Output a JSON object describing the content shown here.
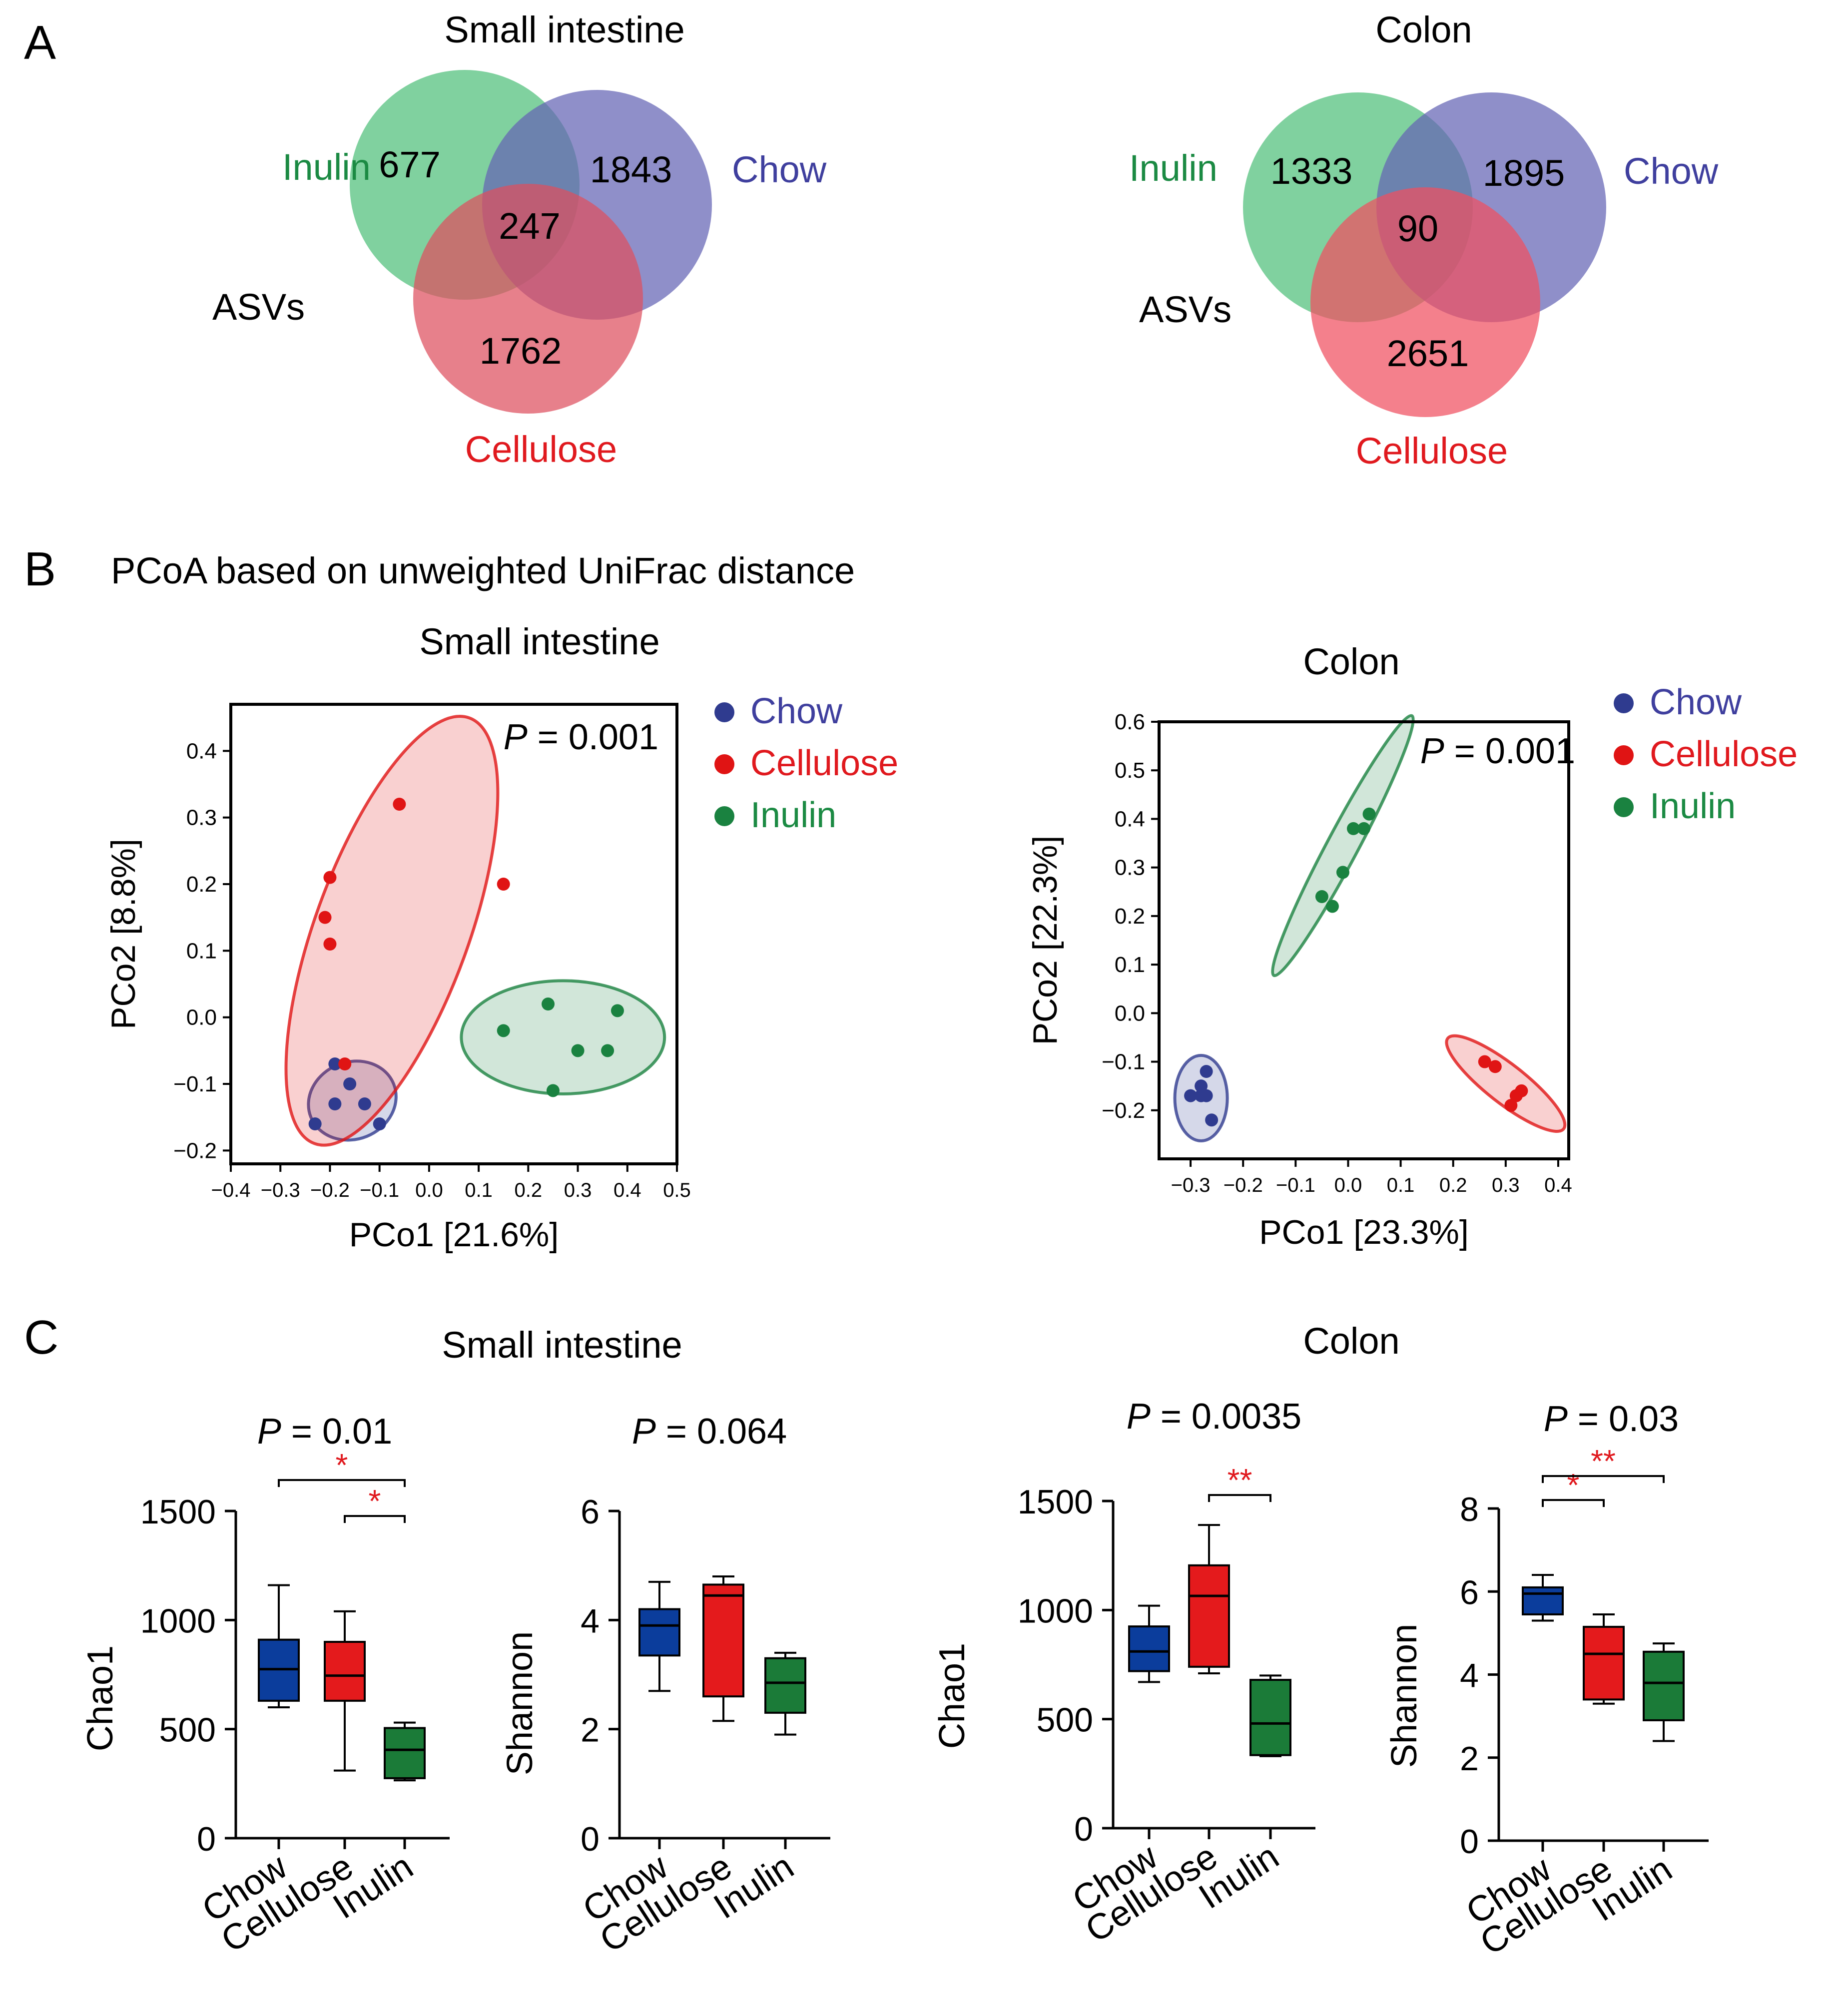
{
  "colors": {
    "chow": "#3f3f9e",
    "cellulose": "#e0191e",
    "inulin": "#1b8a43",
    "chow_dot": "#2f3b8f",
    "cellulose_dot": "#e01414",
    "inulin_dot": "#1a8240",
    "venn_inulin": "#4fbf7a",
    "venn_chow": "#6464b4",
    "venn_cellulose": "#de4f5e",
    "box_chow": "#0b3d9c",
    "box_cellulose": "#e41a1c",
    "box_inulin": "#1b7b38",
    "sig": "#e0191e"
  },
  "panels": {
    "A": "A",
    "B": "B",
    "C": "C"
  },
  "panel_b_title": "PCoA based on unweighted UniFrac distance",
  "venn": [
    {
      "title": "Small intestine",
      "set_labels": [
        "Inulin",
        "Chow",
        "Cellulose"
      ],
      "counts": {
        "inulin_only": "677",
        "chow_only": "1843",
        "shared": "247",
        "cellulose_only": "1762"
      },
      "side_label": "ASVs"
    },
    {
      "title": "Colon",
      "set_labels": [
        "Inulin",
        "Chow",
        "Cellulose"
      ],
      "counts": {
        "inulin_only": "1333",
        "chow_only": "1895",
        "shared": "90",
        "cellulose_only": "2651"
      },
      "side_label": "ASVs"
    }
  ],
  "chart_data": [
    {
      "type": "scatter",
      "title": "Small intestine",
      "xlabel": "PCo1 [21.6%]",
      "ylabel": "PCo2 [8.8%]",
      "annotation": {
        "p": "P",
        "rest": " = 0.001"
      },
      "xlim": [
        -0.4,
        0.5
      ],
      "ylim": [
        -0.22,
        0.47
      ],
      "xticks": [
        -0.4,
        -0.3,
        -0.2,
        -0.1,
        0.0,
        0.1,
        0.2,
        0.3,
        0.4,
        0.5
      ],
      "xtick_labels": [
        "−0.4",
        "−0.3",
        "−0.2",
        "−0.1",
        "0.0",
        "0.1",
        "0.2",
        "0.3",
        "0.4",
        "0.5"
      ],
      "yticks": [
        -0.2,
        -0.1,
        0.0,
        0.1,
        0.2,
        0.3,
        0.4
      ],
      "ytick_labels": [
        "−0.2",
        "−0.1",
        "0.0",
        "0.1",
        "0.2",
        "0.3",
        "0.4"
      ],
      "legend": [
        "Chow",
        "Cellulose",
        "Inulin"
      ],
      "series": [
        {
          "name": "Chow",
          "points": [
            [
              -0.19,
              -0.07
            ],
            [
              -0.16,
              -0.1
            ],
            [
              -0.19,
              -0.13
            ],
            [
              -0.13,
              -0.13
            ],
            [
              -0.1,
              -0.16
            ],
            [
              -0.23,
              -0.16
            ]
          ]
        },
        {
          "name": "Cellulose",
          "points": [
            [
              -0.06,
              0.32
            ],
            [
              0.15,
              0.2
            ],
            [
              -0.2,
              0.21
            ],
            [
              -0.21,
              0.15
            ],
            [
              -0.2,
              0.11
            ],
            [
              -0.17,
              -0.07
            ]
          ]
        },
        {
          "name": "Inulin",
          "points": [
            [
              0.15,
              -0.02
            ],
            [
              0.24,
              0.02
            ],
            [
              0.38,
              0.01
            ],
            [
              0.3,
              -0.05
            ],
            [
              0.36,
              -0.05
            ],
            [
              0.25,
              -0.11
            ]
          ]
        }
      ],
      "ellipses": [
        {
          "name": "Chow",
          "center": [
            -0.155,
            -0.125
          ],
          "rx": 0.09,
          "ry": 0.058,
          "angle": -22
        },
        {
          "name": "Cellulose",
          "center": [
            -0.075,
            0.13
          ],
          "rx": 0.155,
          "ry": 0.34,
          "angle": 20
        },
        {
          "name": "Inulin",
          "center": [
            0.27,
            -0.03
          ],
          "rx": 0.205,
          "ry": 0.085,
          "angle": 0
        }
      ]
    },
    {
      "type": "scatter",
      "title": "Colon",
      "xlabel": "PCo1 [23.3%]",
      "ylabel": "PCo2 [22.3%]",
      "annotation": {
        "p": "P",
        "rest": " = 0.001"
      },
      "xlim": [
        -0.36,
        0.42
      ],
      "ylim": [
        -0.3,
        0.6
      ],
      "xticks": [
        -0.3,
        -0.2,
        -0.1,
        0.0,
        0.1,
        0.2,
        0.3,
        0.4
      ],
      "xtick_labels": [
        "−0.3",
        "−0.2",
        "−0.1",
        "0.0",
        "0.1",
        "0.2",
        "0.3",
        "0.4"
      ],
      "yticks": [
        -0.2,
        -0.1,
        0.0,
        0.1,
        0.2,
        0.3,
        0.4,
        0.5,
        0.6
      ],
      "ytick_labels": [
        "−0.2",
        "−0.1",
        "0.0",
        "0.1",
        "0.2",
        "0.3",
        "0.4",
        "0.5",
        "0.6"
      ],
      "legend": [
        "Chow",
        "Cellulose",
        "Inulin"
      ],
      "series": [
        {
          "name": "Chow",
          "points": [
            [
              -0.27,
              -0.12
            ],
            [
              -0.28,
              -0.15
            ],
            [
              -0.3,
              -0.17
            ],
            [
              -0.28,
              -0.17
            ],
            [
              -0.27,
              -0.17
            ],
            [
              -0.26,
              -0.22
            ]
          ]
        },
        {
          "name": "Cellulose",
          "points": [
            [
              0.26,
              -0.1
            ],
            [
              0.28,
              -0.11
            ],
            [
              0.33,
              -0.16
            ],
            [
              0.32,
              -0.17
            ],
            [
              0.31,
              -0.19
            ]
          ]
        },
        {
          "name": "Inulin",
          "points": [
            [
              0.04,
              0.41
            ],
            [
              0.03,
              0.38
            ],
            [
              0.01,
              0.38
            ],
            [
              -0.01,
              0.29
            ],
            [
              -0.05,
              0.24
            ],
            [
              -0.03,
              0.22
            ]
          ]
        }
      ],
      "ellipses": [
        {
          "name": "Chow",
          "center": [
            -0.28,
            -0.175
          ],
          "rx": 0.05,
          "ry": 0.088,
          "angle": 0
        },
        {
          "name": "Cellulose",
          "center": [
            0.3,
            -0.145
          ],
          "rx": 0.14,
          "ry": 0.04,
          "angle": 38
        },
        {
          "name": "Inulin",
          "center": [
            -0.01,
            0.345
          ],
          "rx": 0.28,
          "ry": 0.032,
          "angle": -62
        }
      ]
    },
    {
      "type": "box",
      "group": "Small intestine",
      "ylabel": "Chao1",
      "annotation": {
        "p": "P",
        "rest": " = 0.01"
      },
      "ylim": [
        0,
        1500
      ],
      "yticks": [
        0,
        500,
        1000,
        1500
      ],
      "ytick_labels": [
        "0",
        "500",
        "1000",
        "1500"
      ],
      "categories": [
        "Chow",
        "Cellulose",
        "Inulin"
      ],
      "boxes": [
        {
          "min": 600,
          "q1": 630,
          "median": 775,
          "q3": 910,
          "max": 1160
        },
        {
          "min": 310,
          "q1": 630,
          "median": 745,
          "q3": 900,
          "max": 1040
        },
        {
          "min": 265,
          "q1": 275,
          "median": 405,
          "q3": 505,
          "max": 530
        }
      ],
      "significance": [
        {
          "from": 0,
          "to": 2,
          "label": "*"
        },
        {
          "from": 1,
          "to": 2,
          "label": "*"
        }
      ]
    },
    {
      "type": "box",
      "group": "Small intestine",
      "ylabel": "Shannon",
      "annotation": {
        "p": "P",
        "rest": " = 0.064"
      },
      "ylim": [
        0,
        6
      ],
      "yticks": [
        0,
        2,
        4,
        6
      ],
      "ytick_labels": [
        "0",
        "2",
        "4",
        "6"
      ],
      "categories": [
        "Chow",
        "Cellulose",
        "Inulin"
      ],
      "boxes": [
        {
          "min": 2.7,
          "q1": 3.35,
          "median": 3.9,
          "q3": 4.2,
          "max": 4.7
        },
        {
          "min": 2.15,
          "q1": 2.6,
          "median": 4.45,
          "q3": 4.65,
          "max": 4.8
        },
        {
          "min": 1.9,
          "q1": 2.3,
          "median": 2.85,
          "q3": 3.3,
          "max": 3.4
        }
      ],
      "significance": []
    },
    {
      "type": "box",
      "group": "Colon",
      "ylabel": "Chao1",
      "annotation": {
        "p": "P",
        "rest": " = 0.0035"
      },
      "ylim": [
        0,
        1500
      ],
      "yticks": [
        0,
        500,
        1000,
        1500
      ],
      "ytick_labels": [
        "0",
        "500",
        "1000",
        "1500"
      ],
      "categories": [
        "Chow",
        "Cellulose",
        "Inulin"
      ],
      "boxes": [
        {
          "min": 670,
          "q1": 720,
          "median": 810,
          "q3": 925,
          "max": 1020
        },
        {
          "min": 710,
          "q1": 740,
          "median": 1065,
          "q3": 1205,
          "max": 1390
        },
        {
          "min": 330,
          "q1": 335,
          "median": 480,
          "q3": 680,
          "max": 700
        }
      ],
      "significance": [
        {
          "from": 1,
          "to": 2,
          "label": "**"
        }
      ]
    },
    {
      "type": "box",
      "group": "Colon",
      "ylabel": "Shannon",
      "annotation": {
        "p": "P",
        "rest": " = 0.03"
      },
      "ylim": [
        0,
        8
      ],
      "yticks": [
        0,
        2,
        4,
        6,
        8
      ],
      "ytick_labels": [
        "0",
        "2",
        "4",
        "6",
        "8"
      ],
      "categories": [
        "Chow",
        "Cellulose",
        "Inulin"
      ],
      "boxes": [
        {
          "min": 5.3,
          "q1": 5.45,
          "median": 5.95,
          "q3": 6.1,
          "max": 6.4
        },
        {
          "min": 3.3,
          "q1": 3.4,
          "median": 4.5,
          "q3": 5.15,
          "max": 5.45
        },
        {
          "min": 2.4,
          "q1": 2.9,
          "median": 3.8,
          "q3": 4.55,
          "max": 4.75
        }
      ],
      "significance": [
        {
          "from": 0,
          "to": 1,
          "label": "*"
        },
        {
          "from": 0,
          "to": 2,
          "label": "**"
        }
      ]
    }
  ],
  "box_section_titles": [
    "Small intestine",
    "Colon"
  ]
}
